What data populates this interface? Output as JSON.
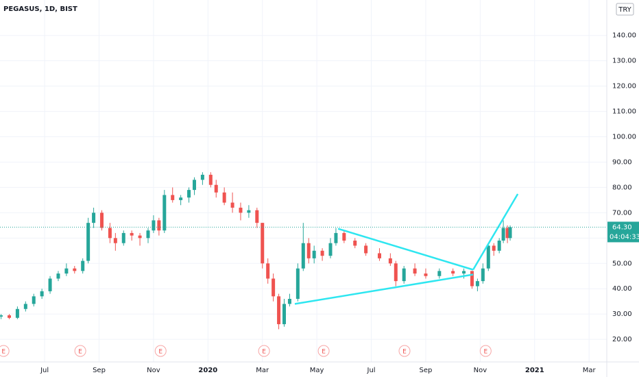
{
  "chart_data": {
    "type": "candlestick",
    "title": "PEGASUS, 1D, BIST",
    "currency": "TRY",
    "up_color": "#26a69a",
    "down_color": "#ef5350",
    "x": [
      -1.6,
      -1.3,
      -1.0,
      -0.7,
      -0.4,
      -0.1,
      0.2,
      0.5,
      0.8,
      1.1,
      1.4,
      1.6,
      1.8,
      2.1,
      2.4,
      2.6,
      2.9,
      3.2,
      3.5,
      3.8,
      4.0,
      4.2,
      4.4,
      4.7,
      5.0,
      5.3,
      5.5,
      5.8,
      6.1,
      6.3,
      6.6,
      6.9,
      7.2,
      7.5,
      7.8,
      8.0,
      8.2,
      8.4,
      8.6,
      8.8,
      9.0,
      9.3,
      9.5,
      9.7,
      9.9,
      10.2,
      10.5,
      10.7,
      11.0,
      11.4,
      11.8,
      12.3,
      12.7,
      12.9,
      13.2,
      13.6,
      14.0,
      14.5,
      15.0,
      15.4,
      15.7,
      15.9,
      16.1,
      16.3,
      16.5,
      16.7,
      16.85,
      17.0,
      17.1
    ],
    "open": [
      29,
      29.5,
      28.5,
      32,
      34,
      37,
      39,
      44,
      46,
      48,
      47,
      51,
      66,
      70,
      64,
      60,
      58,
      62,
      61,
      60,
      63,
      67,
      63,
      77,
      75,
      76,
      79,
      83,
      85,
      81,
      78,
      74,
      72,
      70,
      71,
      66,
      50,
      44,
      37,
      26,
      34,
      36,
      48,
      58,
      52,
      55,
      53,
      58,
      62,
      59,
      57,
      54,
      52,
      50,
      43,
      48,
      46,
      45,
      47,
      46,
      47,
      41,
      43,
      48,
      57,
      55,
      59,
      64,
      60
    ],
    "high": [
      30,
      30,
      33,
      35,
      38,
      40,
      45,
      47,
      50,
      49,
      52,
      68,
      72,
      71,
      66,
      62,
      63,
      63,
      62,
      64,
      69,
      68,
      79,
      80,
      77,
      80,
      84,
      86,
      86,
      83,
      80,
      78,
      74,
      73,
      72,
      66,
      52,
      46,
      38,
      36,
      38,
      50,
      66,
      60,
      57,
      56,
      60,
      64,
      63,
      60,
      58,
      56,
      54,
      51,
      49,
      50,
      48,
      48,
      48,
      48,
      47,
      44,
      50,
      58,
      58,
      60,
      67,
      65,
      65
    ],
    "low": [
      28,
      28,
      28,
      31,
      33,
      36,
      38,
      43,
      45,
      46,
      46,
      50,
      64,
      63,
      58,
      55,
      57,
      59,
      57,
      58,
      62,
      61,
      62,
      74,
      73,
      74,
      77,
      81,
      80,
      76,
      73,
      70,
      67,
      68,
      64,
      48,
      42,
      35,
      24,
      25,
      33,
      35,
      47,
      50,
      50,
      51,
      52,
      57,
      58,
      56,
      53,
      51,
      49,
      41,
      42,
      45,
      44,
      44,
      45,
      44,
      40,
      39,
      42,
      47,
      53,
      54,
      58,
      58,
      59
    ],
    "close": [
      29.5,
      28.5,
      32,
      34,
      37,
      39,
      44,
      46,
      48,
      47,
      51,
      66,
      70,
      64,
      60,
      58,
      62,
      61,
      60,
      63,
      67,
      63,
      77,
      75,
      76,
      79,
      83,
      85,
      81,
      78,
      74,
      72,
      70,
      71,
      66,
      50,
      44,
      37,
      26,
      34,
      36,
      48,
      58,
      52,
      55,
      53,
      58,
      62,
      59,
      57,
      54,
      52,
      50,
      43,
      48,
      46,
      45,
      47,
      46,
      47,
      41,
      43,
      48,
      57,
      55,
      59,
      64,
      60,
      64.3
    ],
    "trendlines": {
      "color": "#2ee6f0",
      "lines": [
        [
          [
            10.78,
            63.7
          ],
          [
            15.74,
            47.5
          ]
        ],
        [
          [
            9.19,
            34.0
          ],
          [
            15.74,
            45.6
          ]
        ],
        [
          [
            15.74,
            47.5
          ],
          [
            17.38,
            77.4
          ]
        ]
      ]
    },
    "events": {
      "label": "E",
      "x": [
        -1.51,
        1.31,
        4.26,
        8.06,
        10.25,
        13.22,
        16.2
      ]
    },
    "last_price": {
      "value": 64.3,
      "label": "64.30"
    },
    "countdown": "04:04:33",
    "xlim": [
      -1.64,
      20.65
    ],
    "ylim": [
      11.1,
      154.0
    ],
    "xticks": [
      {
        "value": 0,
        "label": "Jul"
      },
      {
        "value": 2,
        "label": "Sep"
      },
      {
        "value": 4,
        "label": "Nov"
      },
      {
        "value": 6,
        "label": "2020"
      },
      {
        "value": 8,
        "label": "Mar"
      },
      {
        "value": 10,
        "label": "May"
      },
      {
        "value": 12,
        "label": "Jul"
      },
      {
        "value": 14,
        "label": "Sep"
      },
      {
        "value": 16,
        "label": "Nov"
      },
      {
        "value": 18,
        "label": "2021"
      },
      {
        "value": 20,
        "label": "Mar"
      }
    ],
    "yticks": [
      {
        "value": 20,
        "label": "20.00"
      },
      {
        "value": 30,
        "label": "30.00"
      },
      {
        "value": 40,
        "label": "40.00"
      },
      {
        "value": 50,
        "label": "50.00"
      },
      {
        "value": 60,
        "label": "60.00"
      },
      {
        "value": 70,
        "label": "70.00"
      },
      {
        "value": 80,
        "label": "80.00"
      },
      {
        "value": 90,
        "label": "90.00"
      },
      {
        "value": 100,
        "label": "100.00"
      },
      {
        "value": 110,
        "label": "110.00"
      },
      {
        "value": 120,
        "label": "120.00"
      },
      {
        "value": 130,
        "label": "130.00"
      },
      {
        "value": 140,
        "label": "140.00"
      }
    ],
    "grid": true
  }
}
